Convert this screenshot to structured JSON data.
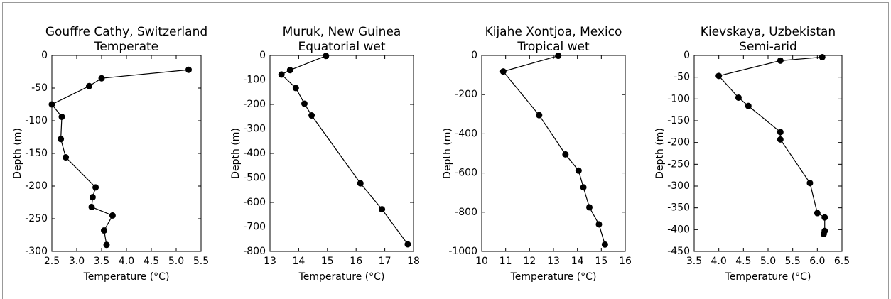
{
  "chart_data": [
    {
      "type": "line",
      "title": "Gouffre Cathy, Switzerland",
      "subtitle": "Temperate",
      "xlabel": "Temperature (°C)",
      "ylabel": "Depth (m)",
      "color": "#000000",
      "xlim": [
        2.5,
        5.5
      ],
      "xticks": [
        2.5,
        {
          "value": 3,
          "label": "3.0"
        },
        3.5,
        {
          "value": 4,
          "label": "4.0"
        },
        4.5,
        {
          "value": 5,
          "label": "5.0"
        },
        5.5
      ],
      "ylim": [
        -300,
        0
      ],
      "yticks": [
        0,
        -50,
        -100,
        -150,
        -200,
        -250,
        -300
      ],
      "x": [
        5.25,
        3.5,
        3.25,
        2.5,
        2.7,
        2.68,
        2.78,
        3.38,
        3.32,
        3.3,
        3.72,
        3.55,
        3.6
      ],
      "values": [
        -22,
        -35,
        -47,
        -75,
        -94,
        -128,
        -156,
        -202,
        -217,
        -232,
        -245,
        -268,
        -290
      ]
    },
    {
      "type": "line",
      "title": "Muruk, New Guinea",
      "subtitle": "Equatorial wet",
      "xlabel": "Temperature (°C)",
      "ylabel": "Depth (m)",
      "color": "#000000",
      "xlim": [
        13,
        18
      ],
      "xticks": [
        13,
        14,
        15,
        16,
        17,
        18
      ],
      "ylim": [
        -800,
        0
      ],
      "yticks": [
        0,
        -100,
        -200,
        -300,
        -400,
        -500,
        -600,
        -700,
        -800
      ],
      "x": [
        14.95,
        13.7,
        13.4,
        13.9,
        14.2,
        14.45,
        16.15,
        16.9,
        17.8
      ],
      "values": [
        -2,
        -60,
        -78,
        -133,
        -197,
        -245,
        -522,
        -628,
        -771
      ]
    },
    {
      "type": "line",
      "title": "Kijahe Xontjoa, Mexico",
      "subtitle": "Tropical wet",
      "xlabel": "Temperature (°C)",
      "ylabel": "Depth (m)",
      "color": "#000000",
      "xlim": [
        10,
        16
      ],
      "xticks": [
        10,
        11,
        12,
        13,
        14,
        15,
        16
      ],
      "ylim": [
        -1000,
        0
      ],
      "yticks": [
        0,
        -200,
        -400,
        -600,
        -800,
        -1000
      ],
      "x": [
        13.2,
        10.9,
        12.4,
        13.5,
        14.05,
        14.25,
        14.5,
        14.9,
        15.15
      ],
      "values": [
        -2,
        -82,
        -305,
        -505,
        -588,
        -673,
        -775,
        -862,
        -965
      ]
    },
    {
      "type": "line",
      "title": "Kievskaya, Uzbekistan",
      "subtitle": "Semi-arid",
      "xlabel": "Temperature (°C)",
      "ylabel": "Depth (m)",
      "color": "#000000",
      "xlim": [
        3.5,
        6.5
      ],
      "xticks": [
        3.5,
        {
          "value": 4,
          "label": "4.0"
        },
        4.5,
        {
          "value": 5,
          "label": "5.0"
        },
        5.5,
        {
          "value": 6,
          "label": "6.0"
        },
        6.5
      ],
      "ylim": [
        -450,
        0
      ],
      "yticks": [
        0,
        -50,
        -100,
        -150,
        -200,
        -250,
        -300,
        -350,
        -400,
        -450
      ],
      "x": [
        6.1,
        5.25,
        4.0,
        4.4,
        4.6,
        5.25,
        5.25,
        5.85,
        6.0,
        6.15,
        6.15,
        6.13
      ],
      "values": [
        -4,
        -12,
        -47,
        -97,
        -116,
        -176,
        -193,
        -293,
        -362,
        -372,
        -403,
        -410
      ]
    }
  ]
}
